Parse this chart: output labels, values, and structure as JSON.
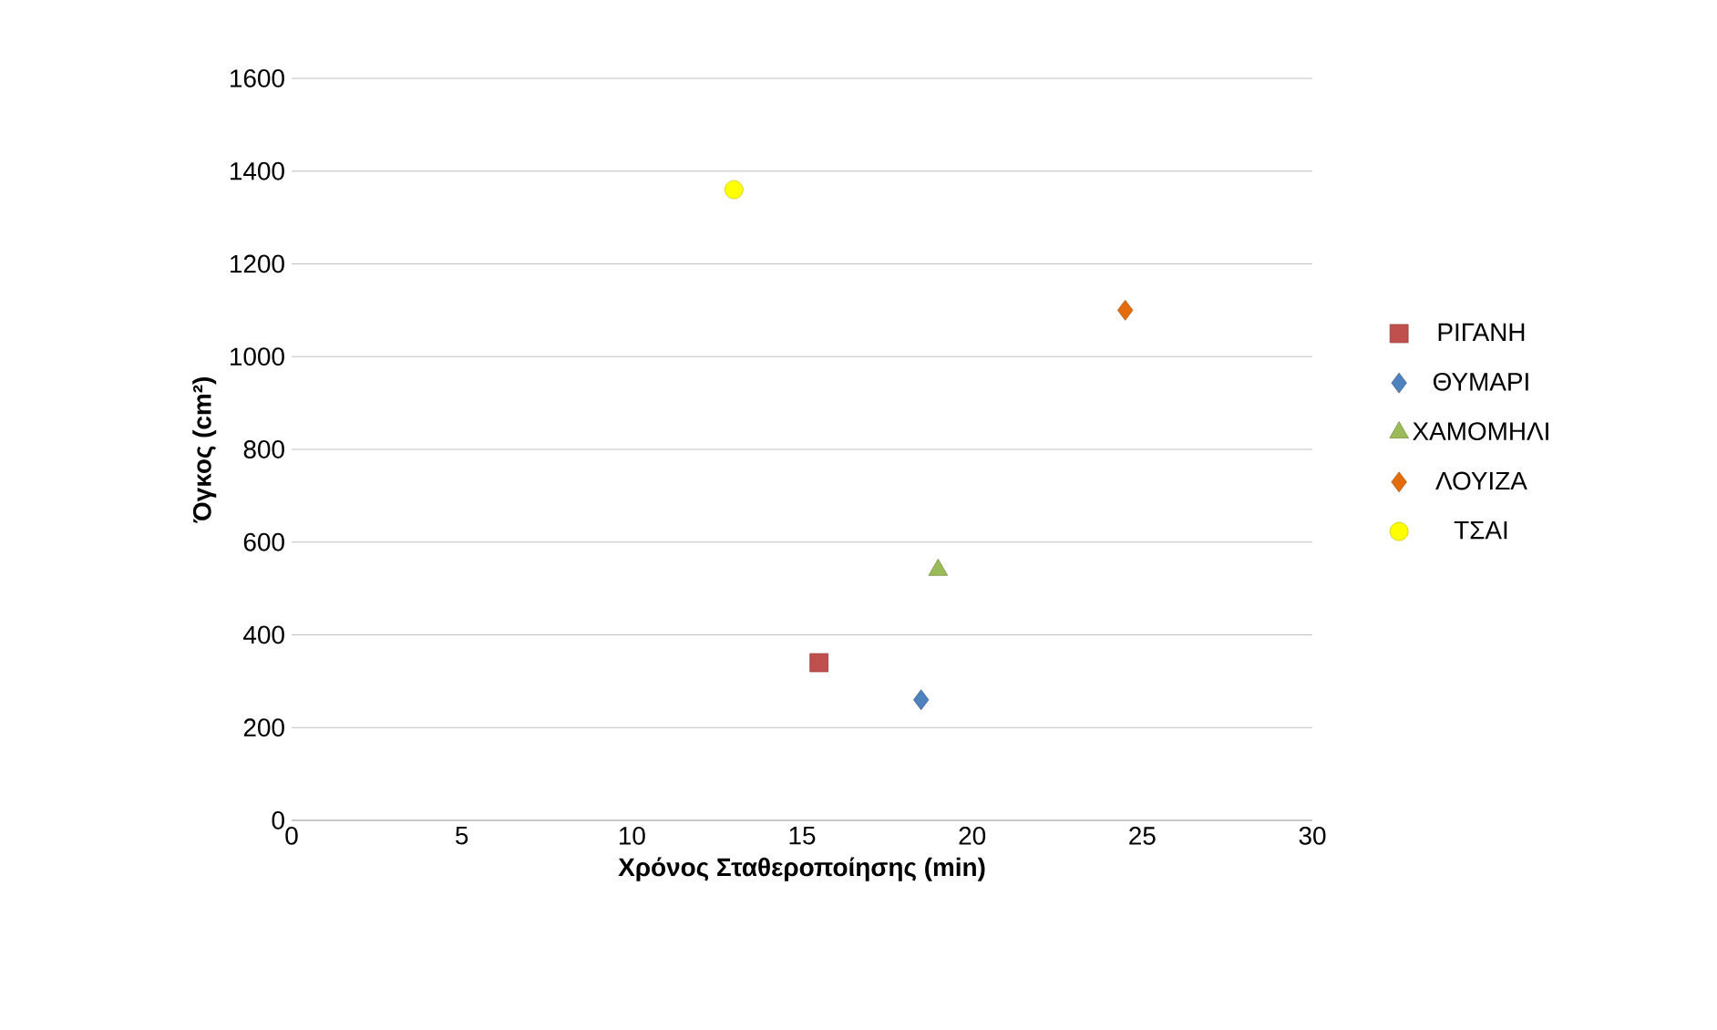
{
  "chart_data": {
    "type": "scatter",
    "xlabel": "Χρόνος Σταθεροποίησης (min)",
    "ylabel": "Όγκος (cm²)",
    "xlim": [
      0,
      30
    ],
    "xticks": [
      0,
      5,
      10,
      15,
      20,
      25,
      30
    ],
    "ylim": [
      0,
      1600
    ],
    "yticks": [
      0,
      200,
      400,
      600,
      800,
      1000,
      1200,
      1400,
      1600
    ],
    "grid": "y",
    "legend": "right",
    "series": [
      {
        "name": "ΡΙΓΑΝΗ",
        "color": "#c0504d",
        "marker": "square",
        "x": [
          15.5
        ],
        "values": [
          340
        ]
      },
      {
        "name": "ΘΥΜΑΡΙ",
        "color": "#4f81bd",
        "marker": "diamond",
        "x": [
          18.5
        ],
        "values": [
          260
        ]
      },
      {
        "name": "ΧΑΜΟΜΗΛΙ",
        "color": "#9bbb59",
        "marker": "triangle",
        "x": [
          19.0
        ],
        "values": [
          540
        ]
      },
      {
        "name": "ΛΟΥΙΖΑ",
        "color": "#e46c0a",
        "marker": "diamond",
        "x": [
          24.5
        ],
        "values": [
          1100
        ]
      },
      {
        "name": "ΤΣΑΙ",
        "color": "#ffff00",
        "marker": "circle",
        "x": [
          13.0
        ],
        "values": [
          1360
        ]
      }
    ]
  }
}
